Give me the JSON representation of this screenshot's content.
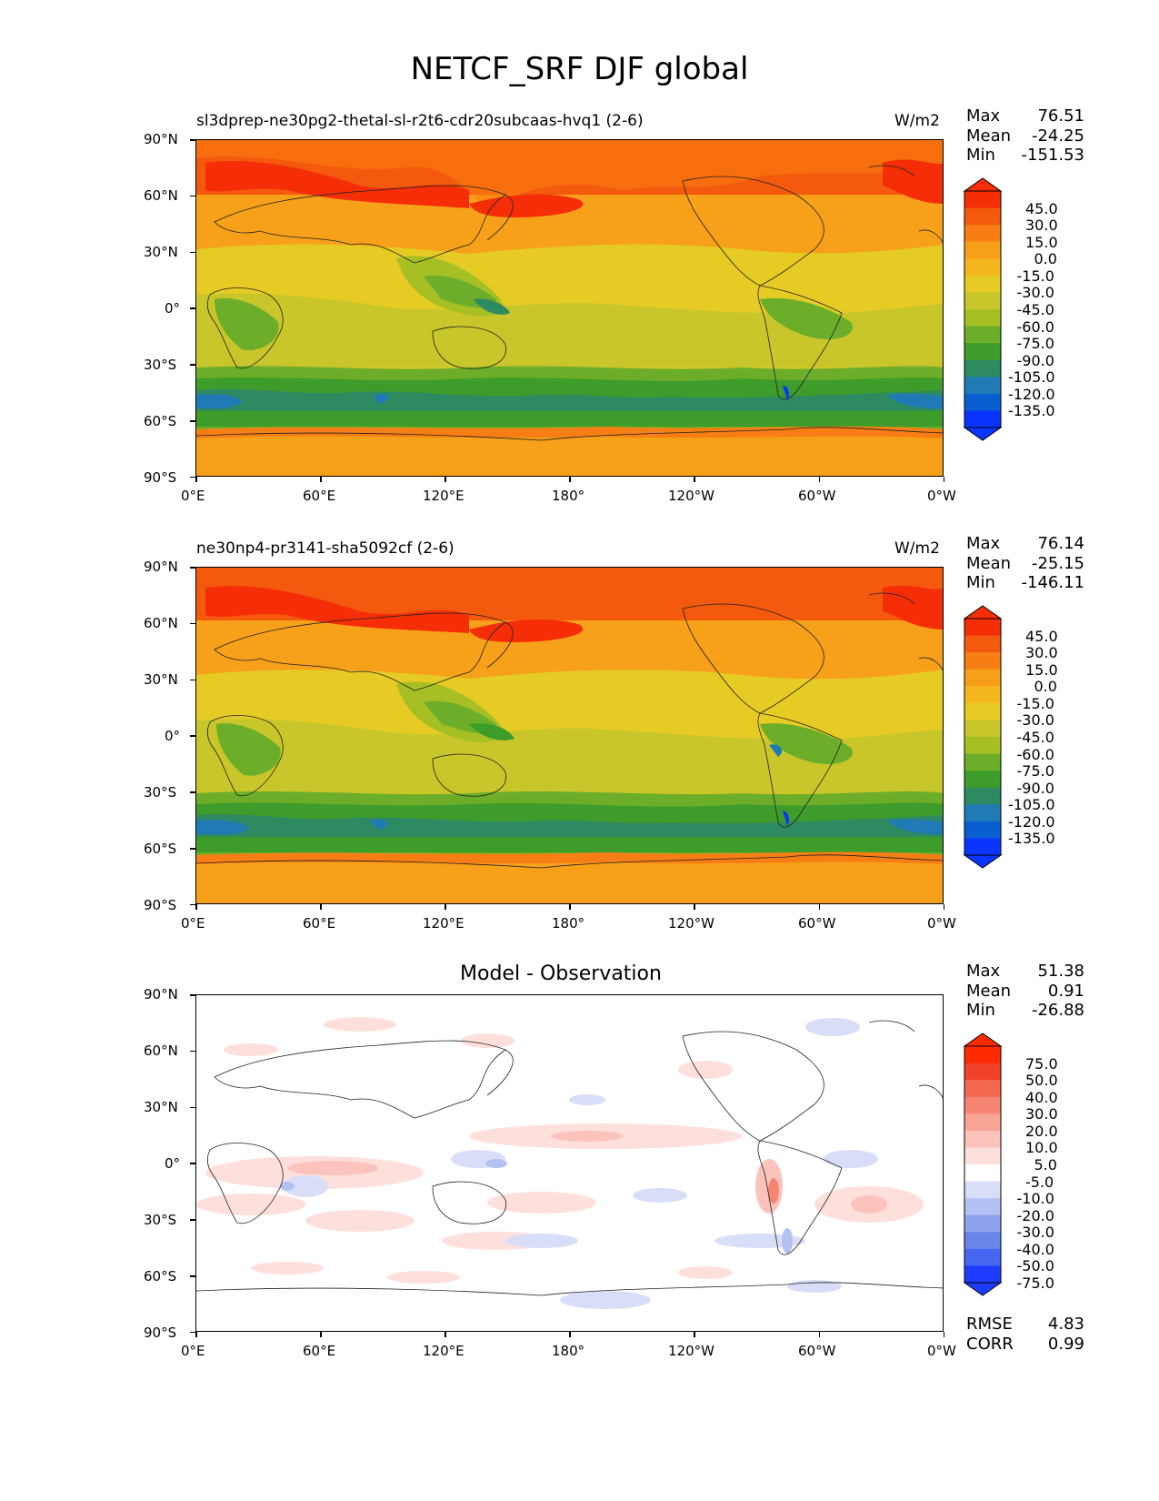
{
  "title": "NETCF_SRF DJF global",
  "colors": {
    "fullfield": [
      "#0a35ff",
      "#0a5fd0",
      "#1f7ab5",
      "#2e8a60",
      "#3e9c2a",
      "#6cae2a",
      "#a5bf25",
      "#c8c62a",
      "#e6cb25",
      "#f5b71e",
      "#f79f18",
      "#f77e14",
      "#f45a0e",
      "#f52e08"
    ],
    "diff": [
      "#1d3cff",
      "#4566f0",
      "#6a85ea",
      "#8ea2ee",
      "#b3c0f2",
      "#d9def8",
      "#ffffff",
      "#fde0dc",
      "#fbc3bb",
      "#f8a596",
      "#f68574",
      "#f36650",
      "#f04228",
      "#ff2a00"
    ]
  },
  "panels": [
    {
      "title": "sl3dprep-ne30pg2-thetal-sl-r2t6-cdr20subcaas-hvq1 (2-6)",
      "units": "W/m2",
      "stats": {
        "max_label": "Max",
        "max": "76.51",
        "mean_label": "Mean",
        "mean": "-24.25",
        "min_label": "Min",
        "min": "-151.53"
      },
      "colorbar_labels": [
        "45.0",
        "30.0",
        "15.0",
        "0.0",
        "-15.0",
        "-30.0",
        "-45.0",
        "-60.0",
        "-75.0",
        "-90.0",
        "-105.0",
        "-120.0",
        "-135.0"
      ],
      "colorbar_palette": "fullfield"
    },
    {
      "title": "ne30np4-pr3141-sha5092cf (2-6)",
      "units": "W/m2",
      "stats": {
        "max_label": "Max",
        "max": "76.14",
        "mean_label": "Mean",
        "mean": "-25.15",
        "min_label": "Min",
        "min": "-146.11"
      },
      "colorbar_labels": [
        "45.0",
        "30.0",
        "15.0",
        "0.0",
        "-15.0",
        "-30.0",
        "-45.0",
        "-60.0",
        "-75.0",
        "-90.0",
        "-105.0",
        "-120.0",
        "-135.0"
      ],
      "colorbar_palette": "fullfield"
    },
    {
      "title": "Model - Observation",
      "units": "",
      "stats": {
        "max_label": "Max",
        "max": "51.38",
        "mean_label": "Mean",
        "mean": "0.91",
        "min_label": "Min",
        "min": "-26.88"
      },
      "colorbar_labels": [
        "75.0",
        "50.0",
        "40.0",
        "30.0",
        "20.0",
        "10.0",
        "5.0",
        "-5.0",
        "-10.0",
        "-20.0",
        "-30.0",
        "-40.0",
        "-50.0",
        "-75.0"
      ],
      "colorbar_palette": "diff",
      "extra_stats": {
        "rmse_label": "RMSE",
        "rmse": "4.83",
        "corr_label": "CORR",
        "corr": "0.99"
      }
    }
  ],
  "axes": {
    "lat_ticks": [
      "90°N",
      "60°N",
      "30°N",
      "0°",
      "30°S",
      "60°S",
      "90°S"
    ],
    "lon_ticks": [
      "0°E",
      "60°E",
      "120°E",
      "180°",
      "120°W",
      "60°W",
      "0°W"
    ]
  }
}
